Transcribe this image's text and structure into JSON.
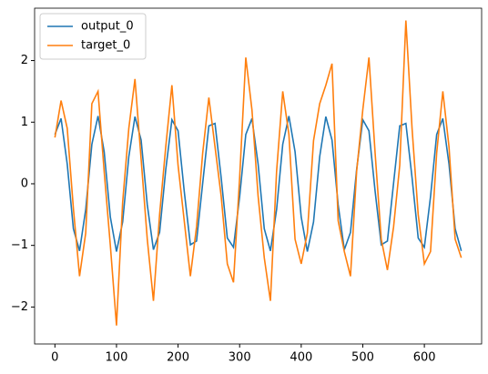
{
  "chart_data": {
    "type": "line",
    "x": [
      0,
      10,
      20,
      30,
      40,
      50,
      60,
      70,
      80,
      90,
      100,
      110,
      120,
      130,
      140,
      150,
      160,
      170,
      180,
      190,
      200,
      210,
      220,
      230,
      240,
      250,
      260,
      270,
      280,
      290,
      300,
      310,
      320,
      330,
      340,
      350,
      360,
      370,
      380,
      390,
      400,
      410,
      420,
      430,
      440,
      450,
      460,
      470,
      480,
      490,
      500,
      510,
      520,
      530,
      540,
      550,
      560,
      570,
      580,
      590,
      600,
      610,
      620,
      630,
      640,
      650,
      660
    ],
    "series": [
      {
        "name": "output_0",
        "color": "#1f77b4",
        "values": [
          0.8,
          1.06,
          0.32,
          -0.73,
          -1.09,
          -0.42,
          0.64,
          1.1,
          0.52,
          -0.54,
          -1.1,
          -0.62,
          0.44,
          1.09,
          0.71,
          -0.34,
          -1.07,
          -0.79,
          0.23,
          1.04,
          0.86,
          -0.12,
          -0.99,
          -0.93,
          0.01,
          0.94,
          0.98,
          0.1,
          -0.88,
          -1.03,
          -0.21,
          0.8,
          1.06,
          0.32,
          -0.73,
          -1.09,
          -0.42,
          0.64,
          1.1,
          0.52,
          -0.54,
          -1.1,
          -0.62,
          0.44,
          1.09,
          0.71,
          -0.34,
          -1.07,
          -0.79,
          0.23,
          1.04,
          0.86,
          -0.12,
          -0.99,
          -0.93,
          0.01,
          0.94,
          0.98,
          0.1,
          -0.88,
          -1.03,
          -0.21,
          0.8,
          1.06,
          0.32,
          -0.73,
          -1.09
        ]
      },
      {
        "name": "target_0",
        "color": "#ff7f0e",
        "values": [
          0.75,
          1.35,
          0.9,
          -0.4,
          -1.5,
          -0.8,
          1.3,
          1.5,
          0.2,
          -1.0,
          -2.3,
          -0.3,
          0.9,
          1.7,
          0.4,
          -0.9,
          -1.9,
          -0.5,
          0.6,
          1.6,
          0.3,
          -0.6,
          -1.5,
          -0.7,
          0.5,
          1.4,
          0.6,
          -0.2,
          -1.3,
          -1.6,
          0.1,
          2.05,
          1.2,
          -0.2,
          -1.2,
          -1.9,
          0.2,
          1.5,
          0.8,
          -0.9,
          -1.3,
          -0.8,
          0.7,
          1.3,
          1.6,
          1.95,
          -0.6,
          -1.1,
          -1.5,
          0.2,
          1.2,
          2.05,
          0.5,
          -0.9,
          -1.4,
          -0.7,
          0.3,
          2.65,
          0.9,
          -0.5,
          -1.3,
          -1.1,
          0.5,
          1.5,
          0.6,
          -0.9,
          -1.2
        ]
      }
    ],
    "xlim": [
      -33,
      693
    ],
    "ylim": [
      -2.6,
      2.85
    ],
    "xticks": [
      0,
      100,
      200,
      300,
      400,
      500,
      600
    ],
    "yticks": [
      {
        "value": -2,
        "label": "−2"
      },
      {
        "value": -1,
        "label": "−1"
      },
      0,
      1,
      2
    ],
    "legend": "upper left"
  }
}
